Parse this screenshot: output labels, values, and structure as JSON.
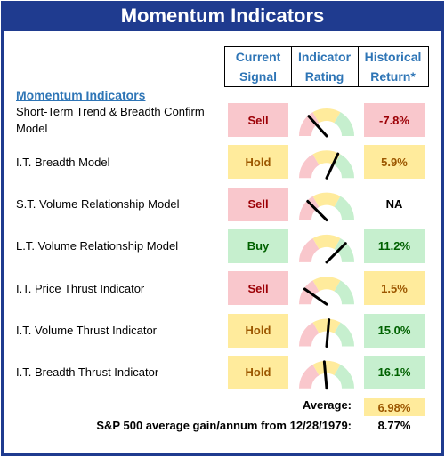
{
  "header": {
    "title": "Momentum Indicators"
  },
  "table": {
    "columns": [
      "Current Signal",
      "Indicator Rating",
      "Historical Return*"
    ],
    "section": "Momentum Indicators",
    "rows": [
      {
        "name": "Short-Term Trend & Breadth Confirm Model",
        "signal": "Sell",
        "signal_tone": "red",
        "return": "-7.8%",
        "return_tone": "red"
      },
      {
        "name": "I.T. Breadth Model",
        "signal": "Hold",
        "signal_tone": "yellow",
        "return": "5.9%",
        "return_tone": "yellow"
      },
      {
        "name": "S.T. Volume Relationship Model",
        "signal": "Sell",
        "signal_tone": "red",
        "return": "NA",
        "return_tone": "none"
      },
      {
        "name": "L.T. Volume Relationship Model",
        "signal": "Buy",
        "signal_tone": "green",
        "return": "11.2%",
        "return_tone": "green"
      },
      {
        "name": "I.T. Price Thrust Indicator",
        "signal": "Sell",
        "signal_tone": "red",
        "return": "1.5%",
        "return_tone": "yellow"
      },
      {
        "name": "I.T. Volume Thrust Indicator",
        "signal": "Hold",
        "signal_tone": "yellow",
        "return": "15.0%",
        "return_tone": "green"
      },
      {
        "name": "I.T. Breadth Thrust Indicator",
        "signal": "Hold",
        "signal_tone": "yellow",
        "return": "16.1%",
        "return_tone": "green"
      }
    ]
  },
  "average": {
    "label": "Average:",
    "value": "6.98%",
    "tone": "yellow"
  },
  "footnote": {
    "label": "S&P 500 average gain/annum from 12/28/1979:",
    "value": "8.77%"
  }
}
